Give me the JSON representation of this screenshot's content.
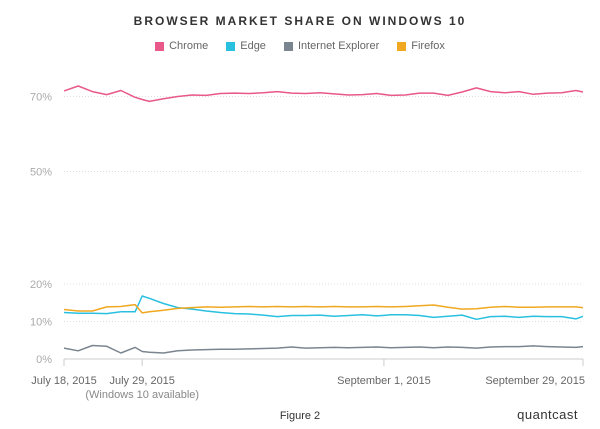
{
  "chart_data": {
    "type": "line",
    "title": "BROWSER MARKET SHARE ON WINDOWS 10",
    "xlabel": "",
    "ylabel": "",
    "ylim": [
      0,
      75
    ],
    "y_ticks": [
      {
        "value": 0,
        "label": "0%"
      },
      {
        "value": 10,
        "label": "10%"
      },
      {
        "value": 20,
        "label": "20%"
      },
      {
        "value": 50,
        "label": "50%"
      },
      {
        "value": 70,
        "label": "70%"
      }
    ],
    "x_range": [
      "2015-07-18",
      "2015-09-29"
    ],
    "x_ticks": [
      {
        "date": "2015-07-18",
        "label": "July 18, 2015",
        "sublabel": ""
      },
      {
        "date": "2015-07-29",
        "label": "July 29, 2015",
        "sublabel": "(Windows 10 available)"
      },
      {
        "date": "2015-09-01",
        "label": "September 1, 2015",
        "sublabel": ""
      },
      {
        "date": "2015-09-29",
        "label": "September 29, 2015",
        "sublabel": ""
      }
    ],
    "grid": "horizontal dotted",
    "legend": "top",
    "x": [
      "2015-07-18",
      "2015-07-20",
      "2015-07-22",
      "2015-07-24",
      "2015-07-26",
      "2015-07-28",
      "2015-07-29",
      "2015-07-30",
      "2015-08-01",
      "2015-08-03",
      "2015-08-05",
      "2015-08-07",
      "2015-08-09",
      "2015-08-11",
      "2015-08-13",
      "2015-08-15",
      "2015-08-17",
      "2015-08-19",
      "2015-08-21",
      "2015-08-23",
      "2015-08-25",
      "2015-08-27",
      "2015-08-29",
      "2015-08-31",
      "2015-09-02",
      "2015-09-04",
      "2015-09-06",
      "2015-09-08",
      "2015-09-10",
      "2015-09-12",
      "2015-09-14",
      "2015-09-16",
      "2015-09-18",
      "2015-09-20",
      "2015-09-22",
      "2015-09-24",
      "2015-09-26",
      "2015-09-28",
      "2015-09-29"
    ],
    "series": [
      {
        "name": "Chrome",
        "color": "#e8588a",
        "values": [
          71.5,
          72.8,
          71.3,
          70.5,
          71.6,
          69.8,
          69.2,
          68.7,
          69.4,
          70.0,
          70.4,
          70.3,
          70.8,
          70.9,
          70.8,
          71.0,
          71.3,
          70.9,
          70.8,
          71.0,
          70.7,
          70.4,
          70.5,
          70.8,
          70.3,
          70.4,
          70.9,
          70.9,
          70.3,
          71.2,
          72.3,
          71.3,
          71.0,
          71.3,
          70.6,
          70.9,
          71.0,
          71.6,
          71.2
        ]
      },
      {
        "name": "Edge",
        "color": "#29c0e0",
        "values": [
          12.4,
          12.2,
          12.2,
          12.1,
          12.6,
          12.6,
          16.8,
          16.2,
          14.8,
          13.7,
          13.3,
          12.8,
          12.4,
          12.1,
          12.0,
          11.7,
          11.3,
          11.6,
          11.6,
          11.7,
          11.4,
          11.6,
          11.8,
          11.5,
          11.8,
          11.8,
          11.6,
          11.1,
          11.4,
          11.7,
          10.6,
          11.3,
          11.4,
          11.1,
          11.4,
          11.3,
          11.3,
          10.7,
          11.4
        ]
      },
      {
        "name": "Internet Explorer",
        "color": "#7b8590",
        "values": [
          2.9,
          2.2,
          3.6,
          3.4,
          1.6,
          3.1,
          2.0,
          1.8,
          1.6,
          2.2,
          2.4,
          2.5,
          2.6,
          2.6,
          2.7,
          2.8,
          2.9,
          3.2,
          2.9,
          3.0,
          3.1,
          3.0,
          3.1,
          3.2,
          3.0,
          3.1,
          3.2,
          3.0,
          3.2,
          3.1,
          2.9,
          3.2,
          3.3,
          3.3,
          3.5,
          3.3,
          3.2,
          3.1,
          3.3
        ]
      },
      {
        "name": "Firefox",
        "color": "#f0a820",
        "values": [
          13.2,
          12.8,
          12.8,
          13.9,
          14.0,
          14.5,
          12.3,
          12.6,
          13.0,
          13.5,
          13.7,
          13.9,
          13.8,
          13.9,
          14.0,
          13.9,
          14.0,
          13.9,
          14.0,
          13.9,
          14.0,
          13.9,
          13.9,
          14.0,
          13.9,
          14.0,
          14.2,
          14.4,
          13.8,
          13.3,
          13.4,
          13.8,
          14.0,
          13.8,
          13.8,
          13.9,
          13.9,
          13.9,
          13.7
        ]
      }
    ]
  },
  "footer": {
    "caption": "Figure 2",
    "brand": "quantcast"
  }
}
